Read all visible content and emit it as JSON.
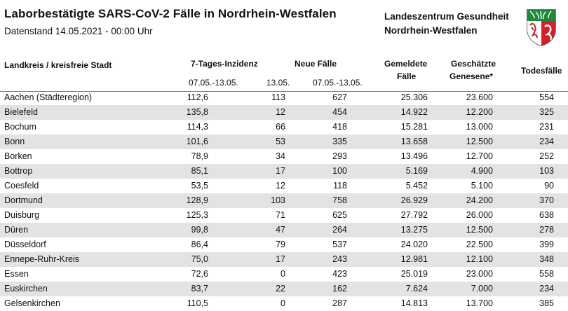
{
  "header": {
    "title": "Laborbestätigte SARS-CoV-2 Fälle in Nordrhein-Westfalen",
    "subtitle": "Datenstand 14.05.2021 - 00:00 Uhr",
    "org_line1": "Landeszentrum Gesundheit",
    "org_line2": "Nordrhein-Westfalen",
    "crest_icon": "nrw-coat-of-arms-icon"
  },
  "columns": {
    "name": "Landkreis / kreisfreie Stadt",
    "inzidenz": "7-Tages-Inzidenz",
    "inzidenz_sub": "07.05.-13.05.",
    "neue": "Neue Fälle",
    "neue_sub1": "13.05.",
    "neue_sub2": "07.05.-13.05.",
    "gemeldet_l1": "Gemeldete",
    "gemeldet_l2": "Fälle",
    "genesen_l1": "Geschätzte",
    "genesen_l2": "Genesene*",
    "tod": "Todesfälle"
  },
  "rows": [
    {
      "name": "Aachen (Städteregion)",
      "inz": "112,6",
      "neu1": "113",
      "neu7": "627",
      "gem": "25.306",
      "gen": "23.600",
      "tod": "554"
    },
    {
      "name": "Bielefeld",
      "inz": "135,8",
      "neu1": "12",
      "neu7": "454",
      "gem": "14.922",
      "gen": "12.200",
      "tod": "325"
    },
    {
      "name": "Bochum",
      "inz": "114,3",
      "neu1": "66",
      "neu7": "418",
      "gem": "15.281",
      "gen": "13.000",
      "tod": "231"
    },
    {
      "name": "Bonn",
      "inz": "101,6",
      "neu1": "53",
      "neu7": "335",
      "gem": "13.658",
      "gen": "12.500",
      "tod": "234"
    },
    {
      "name": "Borken",
      "inz": "78,9",
      "neu1": "34",
      "neu7": "293",
      "gem": "13.496",
      "gen": "12.700",
      "tod": "252"
    },
    {
      "name": "Bottrop",
      "inz": "85,1",
      "neu1": "17",
      "neu7": "100",
      "gem": "5.169",
      "gen": "4.900",
      "tod": "103"
    },
    {
      "name": "Coesfeld",
      "inz": "53,5",
      "neu1": "12",
      "neu7": "118",
      "gem": "5.452",
      "gen": "5.100",
      "tod": "90"
    },
    {
      "name": "Dortmund",
      "inz": "128,9",
      "neu1": "103",
      "neu7": "758",
      "gem": "26.929",
      "gen": "24.200",
      "tod": "370"
    },
    {
      "name": "Duisburg",
      "inz": "125,3",
      "neu1": "71",
      "neu7": "625",
      "gem": "27.792",
      "gen": "26.000",
      "tod": "638"
    },
    {
      "name": "Düren",
      "inz": "99,8",
      "neu1": "47",
      "neu7": "264",
      "gem": "13.275",
      "gen": "12.500",
      "tod": "278"
    },
    {
      "name": "Düsseldorf",
      "inz": "86,4",
      "neu1": "79",
      "neu7": "537",
      "gem": "24.020",
      "gen": "22.500",
      "tod": "399"
    },
    {
      "name": "Ennepe-Ruhr-Kreis",
      "inz": "75,0",
      "neu1": "17",
      "neu7": "243",
      "gem": "12.981",
      "gen": "12.100",
      "tod": "348"
    },
    {
      "name": "Essen",
      "inz": "72,6",
      "neu1": "0",
      "neu7": "423",
      "gem": "25.019",
      "gen": "23.000",
      "tod": "558"
    },
    {
      "name": "Euskirchen",
      "inz": "83,7",
      "neu1": "22",
      "neu7": "162",
      "gem": "7.624",
      "gen": "7.000",
      "tod": "234"
    },
    {
      "name": "Gelsenkirchen",
      "inz": "110,5",
      "neu1": "0",
      "neu7": "287",
      "gem": "14.813",
      "gen": "13.700",
      "tod": "385"
    }
  ]
}
